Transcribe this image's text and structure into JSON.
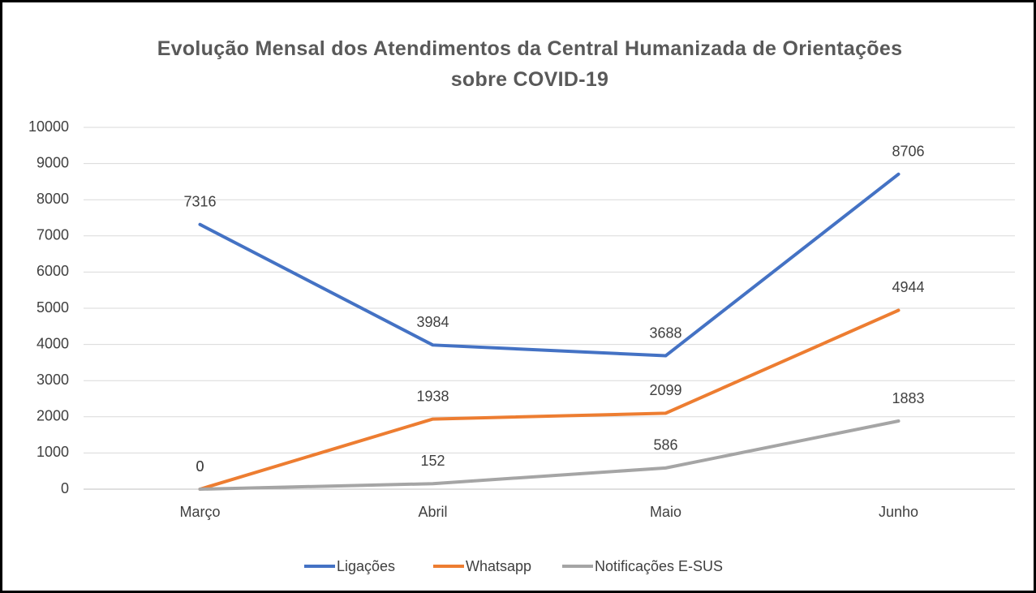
{
  "chart_data": {
    "type": "line",
    "title": "Evolução Mensal dos Atendimentos da Central Humanizada de Orientações sobre COVID-19",
    "categories": [
      "Março",
      "Abril",
      "Maio",
      "Junho"
    ],
    "series": [
      {
        "name": "Ligações",
        "color": "#4472c4",
        "values": [
          7316,
          3984,
          3688,
          8706
        ]
      },
      {
        "name": "Whatsapp",
        "color": "#ed7d31",
        "values": [
          0,
          1938,
          2099,
          4944
        ]
      },
      {
        "name": "Notificações E-SUS",
        "color": "#a5a5a5",
        "values": [
          0,
          152,
          586,
          1883
        ]
      }
    ],
    "ylim": [
      0,
      10000
    ],
    "yticks": [
      0,
      1000,
      2000,
      3000,
      4000,
      5000,
      6000,
      7000,
      8000,
      9000,
      10000
    ],
    "grid": true,
    "legend": "bottom"
  }
}
